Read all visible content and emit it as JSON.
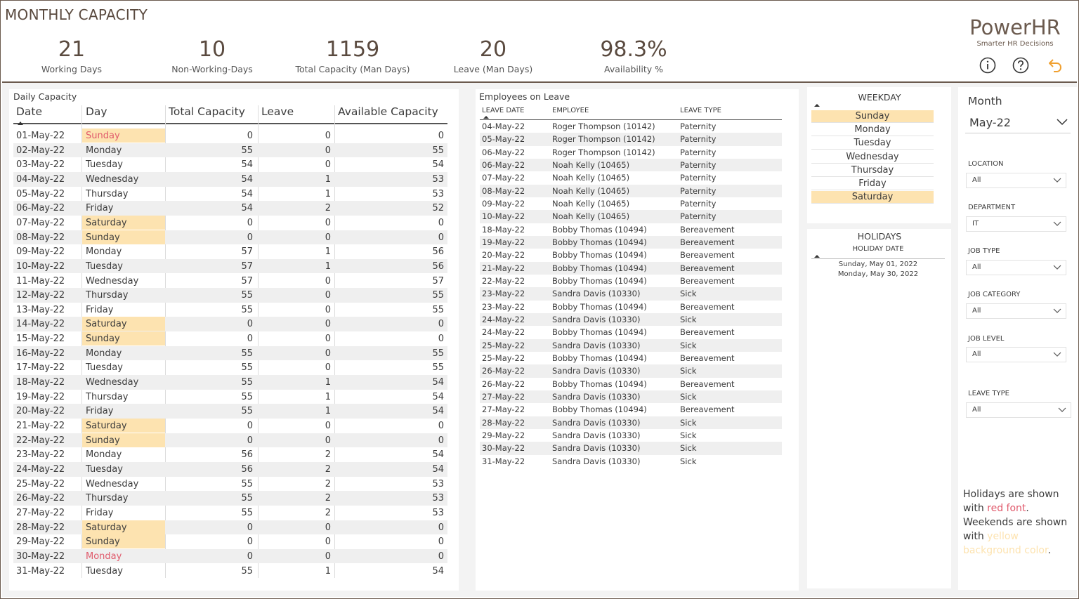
{
  "page": {
    "title": "MONTHLY CAPACITY"
  },
  "kpis": [
    {
      "value": "21",
      "label": "Working Days"
    },
    {
      "value": "10",
      "label": "Non-Working-Days"
    },
    {
      "value": "1159",
      "label": "Total Capacity (Man Days)"
    },
    {
      "value": "20",
      "label": "Leave (Man Days)"
    },
    {
      "value": "98.3%",
      "label": "Availability %"
    }
  ],
  "brand": {
    "name": "PowerHR",
    "tagline": "Smarter HR Decisions"
  },
  "header_icons": [
    "info-icon",
    "help-icon",
    "back-icon"
  ],
  "daily": {
    "title": "Daily Capacity",
    "columns": [
      "Date",
      "Day",
      "Total Capacity",
      "Leave",
      "Available Capacity"
    ],
    "rows": [
      [
        "01-May-22",
        "Sunday",
        "0",
        "0",
        "0"
      ],
      [
        "02-May-22",
        "Monday",
        "55",
        "0",
        "55"
      ],
      [
        "03-May-22",
        "Tuesday",
        "54",
        "0",
        "54"
      ],
      [
        "04-May-22",
        "Wednesday",
        "54",
        "1",
        "53"
      ],
      [
        "05-May-22",
        "Thursday",
        "54",
        "1",
        "53"
      ],
      [
        "06-May-22",
        "Friday",
        "54",
        "2",
        "52"
      ],
      [
        "07-May-22",
        "Saturday",
        "0",
        "0",
        "0"
      ],
      [
        "08-May-22",
        "Sunday",
        "0",
        "0",
        "0"
      ],
      [
        "09-May-22",
        "Monday",
        "57",
        "1",
        "56"
      ],
      [
        "10-May-22",
        "Tuesday",
        "57",
        "1",
        "56"
      ],
      [
        "11-May-22",
        "Wednesday",
        "57",
        "0",
        "57"
      ],
      [
        "12-May-22",
        "Thursday",
        "55",
        "0",
        "55"
      ],
      [
        "13-May-22",
        "Friday",
        "55",
        "0",
        "55"
      ],
      [
        "14-May-22",
        "Saturday",
        "0",
        "0",
        "0"
      ],
      [
        "15-May-22",
        "Sunday",
        "0",
        "0",
        "0"
      ],
      [
        "16-May-22",
        "Monday",
        "55",
        "0",
        "55"
      ],
      [
        "17-May-22",
        "Tuesday",
        "55",
        "0",
        "55"
      ],
      [
        "18-May-22",
        "Wednesday",
        "55",
        "1",
        "54"
      ],
      [
        "19-May-22",
        "Thursday",
        "55",
        "1",
        "54"
      ],
      [
        "20-May-22",
        "Friday",
        "55",
        "1",
        "54"
      ],
      [
        "21-May-22",
        "Saturday",
        "0",
        "0",
        "0"
      ],
      [
        "22-May-22",
        "Sunday",
        "0",
        "0",
        "0"
      ],
      [
        "23-May-22",
        "Monday",
        "56",
        "2",
        "54"
      ],
      [
        "24-May-22",
        "Tuesday",
        "56",
        "2",
        "54"
      ],
      [
        "25-May-22",
        "Wednesday",
        "55",
        "2",
        "53"
      ],
      [
        "26-May-22",
        "Thursday",
        "55",
        "2",
        "53"
      ],
      [
        "27-May-22",
        "Friday",
        "55",
        "2",
        "53"
      ],
      [
        "28-May-22",
        "Saturday",
        "0",
        "0",
        "0"
      ],
      [
        "29-May-22",
        "Sunday",
        "0",
        "0",
        "0"
      ],
      [
        "30-May-22",
        "Monday",
        "0",
        "0",
        "0"
      ],
      [
        "31-May-22",
        "Tuesday",
        "55",
        "1",
        "54"
      ]
    ],
    "weekend_rows": [
      0,
      6,
      7,
      13,
      14,
      20,
      21,
      27,
      28
    ],
    "holiday_rows": [
      0,
      29
    ]
  },
  "leave": {
    "title": "Employees on Leave",
    "columns": [
      "LEAVE DATE",
      "EMPLOYEE",
      "LEAVE TYPE"
    ],
    "rows": [
      [
        "04-May-22",
        "Roger Thompson (10142)",
        "Paternity"
      ],
      [
        "05-May-22",
        "Roger Thompson (10142)",
        "Paternity"
      ],
      [
        "06-May-22",
        "Roger Thompson (10142)",
        "Paternity"
      ],
      [
        "06-May-22",
        "Noah Kelly (10465)",
        "Paternity"
      ],
      [
        "07-May-22",
        "Noah Kelly (10465)",
        "Paternity"
      ],
      [
        "08-May-22",
        "Noah Kelly (10465)",
        "Paternity"
      ],
      [
        "09-May-22",
        "Noah Kelly (10465)",
        "Paternity"
      ],
      [
        "10-May-22",
        "Noah Kelly (10465)",
        "Paternity"
      ],
      [
        "18-May-22",
        "Bobby Thomas (10494)",
        "Bereavement"
      ],
      [
        "19-May-22",
        "Bobby Thomas (10494)",
        "Bereavement"
      ],
      [
        "20-May-22",
        "Bobby Thomas (10494)",
        "Bereavement"
      ],
      [
        "21-May-22",
        "Bobby Thomas (10494)",
        "Bereavement"
      ],
      [
        "22-May-22",
        "Bobby Thomas (10494)",
        "Bereavement"
      ],
      [
        "23-May-22",
        "Sandra Davis (10330)",
        "Sick"
      ],
      [
        "23-May-22",
        "Bobby Thomas (10494)",
        "Bereavement"
      ],
      [
        "24-May-22",
        "Sandra Davis (10330)",
        "Sick"
      ],
      [
        "24-May-22",
        "Bobby Thomas (10494)",
        "Bereavement"
      ],
      [
        "25-May-22",
        "Sandra Davis (10330)",
        "Sick"
      ],
      [
        "25-May-22",
        "Bobby Thomas (10494)",
        "Bereavement"
      ],
      [
        "26-May-22",
        "Sandra Davis (10330)",
        "Sick"
      ],
      [
        "26-May-22",
        "Bobby Thomas (10494)",
        "Bereavement"
      ],
      [
        "27-May-22",
        "Sandra Davis (10330)",
        "Sick"
      ],
      [
        "27-May-22",
        "Bobby Thomas (10494)",
        "Bereavement"
      ],
      [
        "28-May-22",
        "Sandra Davis (10330)",
        "Sick"
      ],
      [
        "29-May-22",
        "Sandra Davis (10330)",
        "Sick"
      ],
      [
        "30-May-22",
        "Sandra Davis (10330)",
        "Sick"
      ],
      [
        "31-May-22",
        "Sandra Davis (10330)",
        "Sick"
      ]
    ]
  },
  "weekday": {
    "title": "WEEKDAY",
    "items": [
      "Sunday",
      "Monday",
      "Tuesday",
      "Wednesday",
      "Thursday",
      "Friday",
      "Saturday"
    ],
    "selected": [
      0,
      6
    ]
  },
  "holidays": {
    "title": "HOLIDAYS",
    "column": "HOLIDAY DATE",
    "items": [
      "Sunday, May 01, 2022",
      "Monday, May 30, 2022"
    ]
  },
  "filters": {
    "month": {
      "label": "Month",
      "value": "May-22"
    },
    "location": {
      "label": "LOCATION",
      "value": "All"
    },
    "department": {
      "label": "DEPARTMENT",
      "value": "IT"
    },
    "job_type": {
      "label": "JOB TYPE",
      "value": "All"
    },
    "job_category": {
      "label": "JOB CATEGORY",
      "value": "All"
    },
    "job_level": {
      "label": "JOB LEVEL",
      "value": "All"
    },
    "leave_type": {
      "label": "LEAVE TYPE",
      "value": "All"
    }
  },
  "note": {
    "p1": "Holidays are shown with ",
    "p1_red": "red font",
    "p1_end": ".",
    "p2": "Weekends are shown with ",
    "p2_yel": "yellow background color",
    "p2_end": "."
  },
  "colors": {
    "accent": "#6b5a4e",
    "weekend_bg": "#fde3b0",
    "holiday_text": "#e05a6c",
    "back_icon": "#f0a030"
  }
}
